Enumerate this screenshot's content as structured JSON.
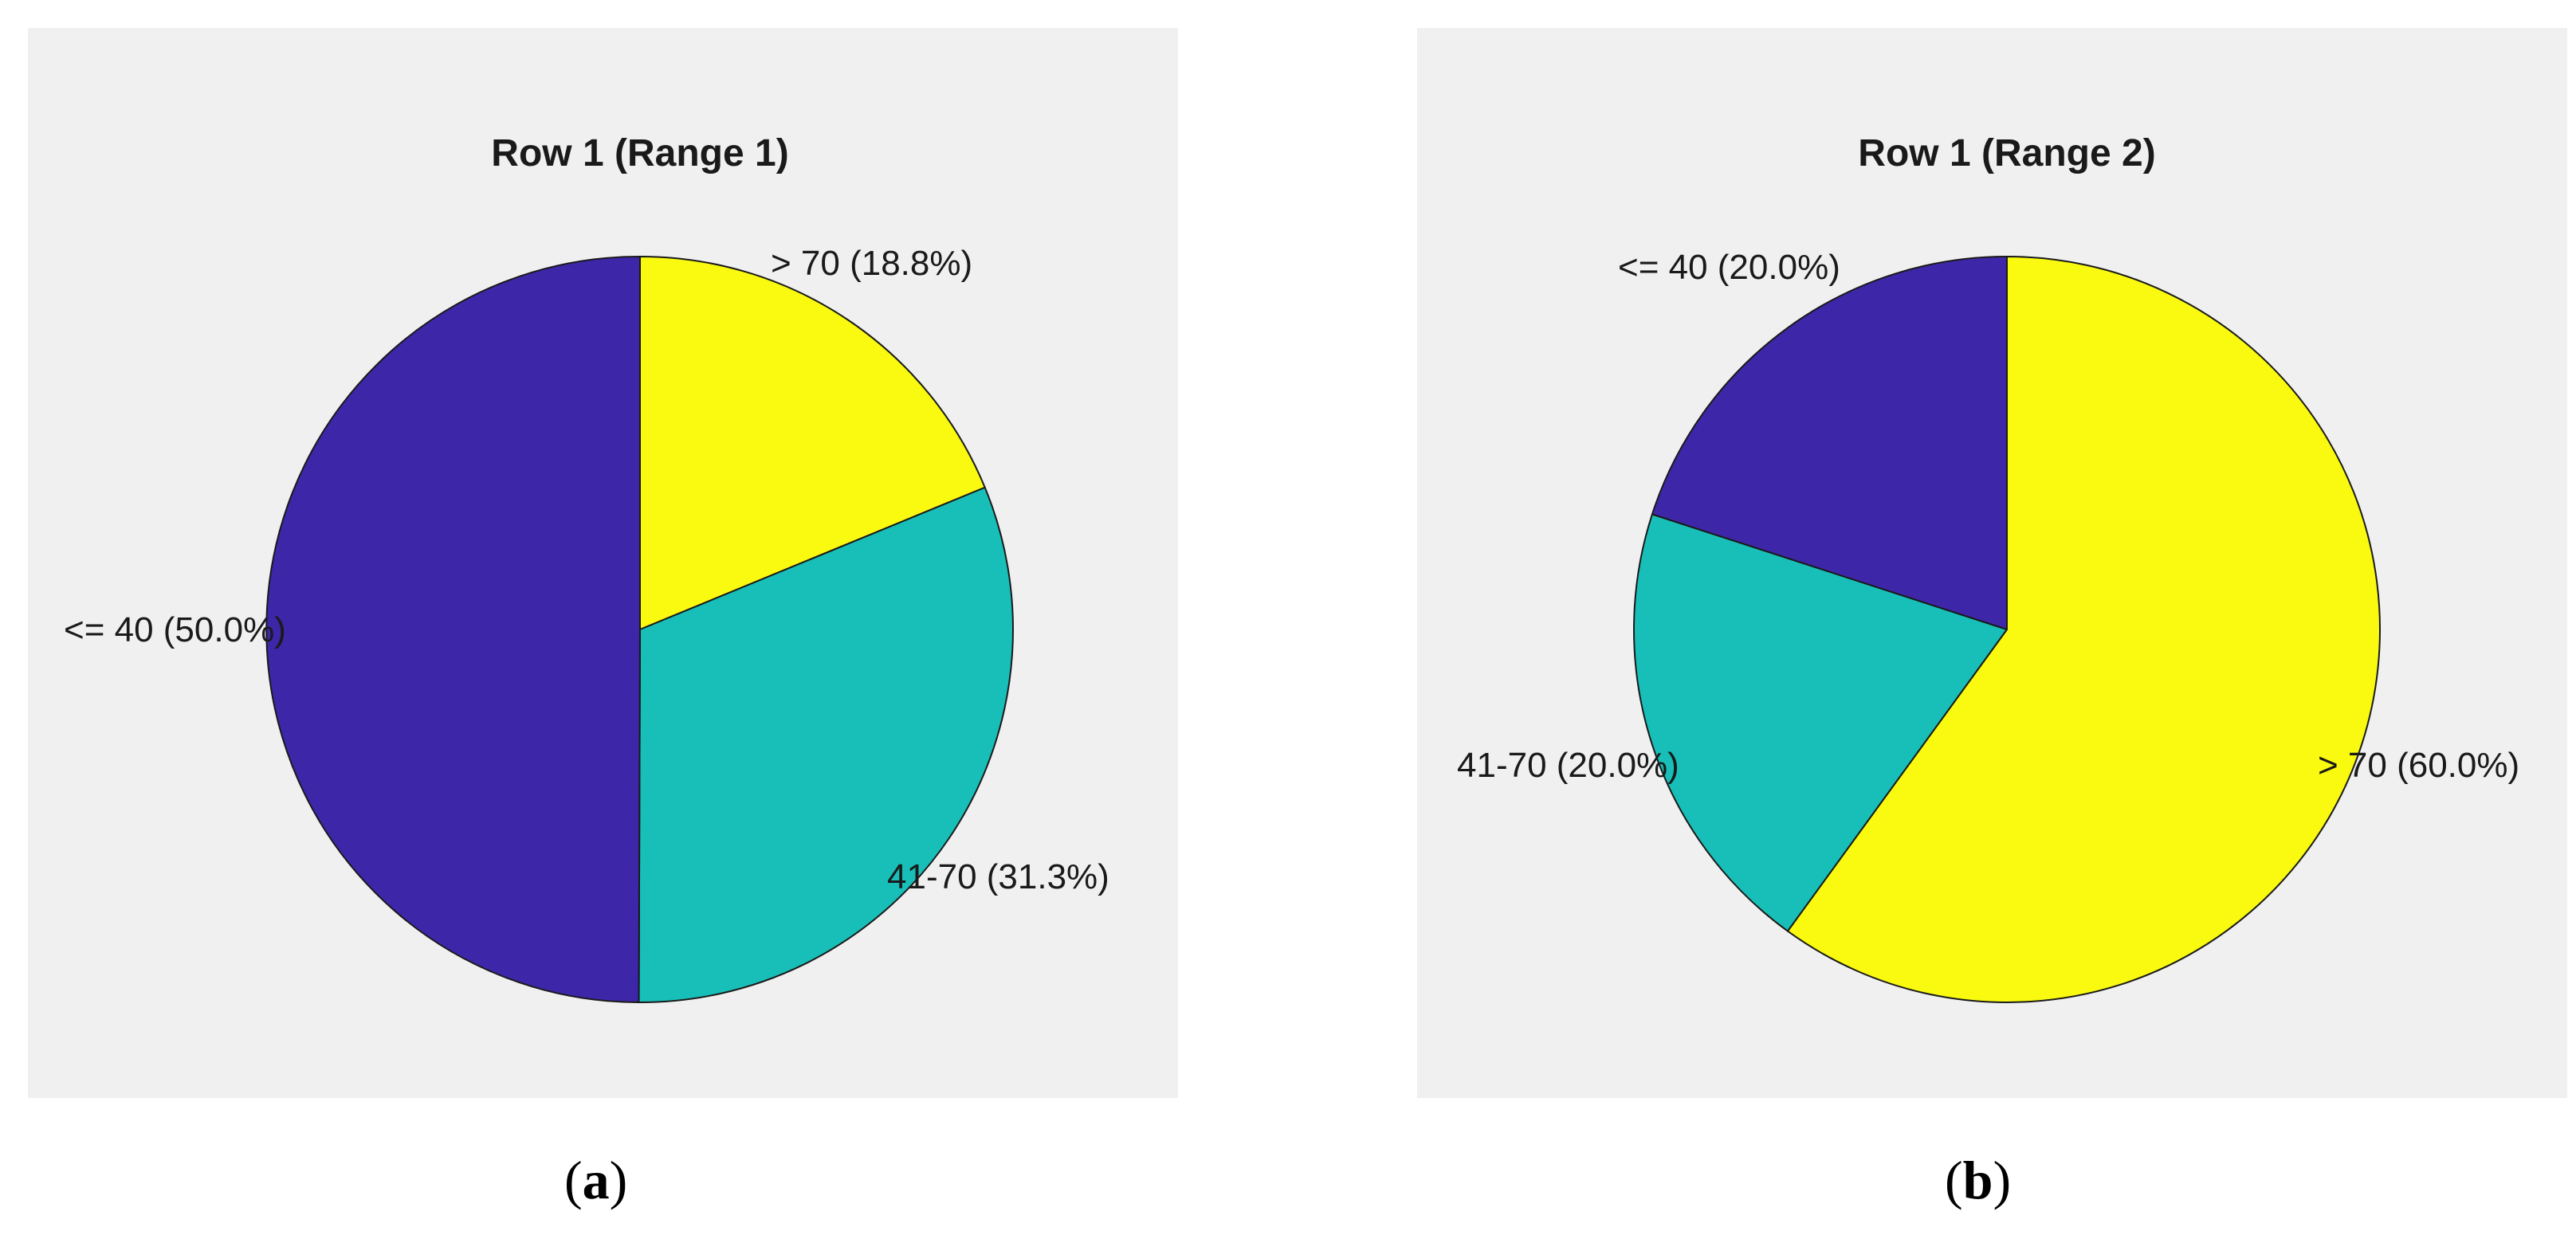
{
  "chart_data": [
    {
      "type": "pie",
      "title": "Row 1 (Range 1)",
      "panel_caption": "a",
      "slices": [
        {
          "category": "<= 40",
          "percent": 50.0,
          "label": "<= 40 (50.0%)",
          "color": "#3e26a8"
        },
        {
          "category": "41-70",
          "percent": 31.3,
          "label": "41-70 (31.3%)",
          "color": "#18bfb8"
        },
        {
          "category": "> 70",
          "percent": 18.8,
          "label": "> 70 (18.8%)",
          "color": "#f9fa0f"
        }
      ]
    },
    {
      "type": "pie",
      "title": "Row 1 (Range 2)",
      "panel_caption": "b",
      "slices": [
        {
          "category": "<= 40",
          "percent": 20.0,
          "label": "<= 40 (20.0%)",
          "color": "#3e26a8"
        },
        {
          "category": "41-70",
          "percent": 20.0,
          "label": "41-70 (20.0%)",
          "color": "#18bfb8"
        },
        {
          "category": "> 70",
          "percent": 60.0,
          "label": "> 70 (60.0%)",
          "color": "#f9fa0f"
        }
      ]
    }
  ]
}
